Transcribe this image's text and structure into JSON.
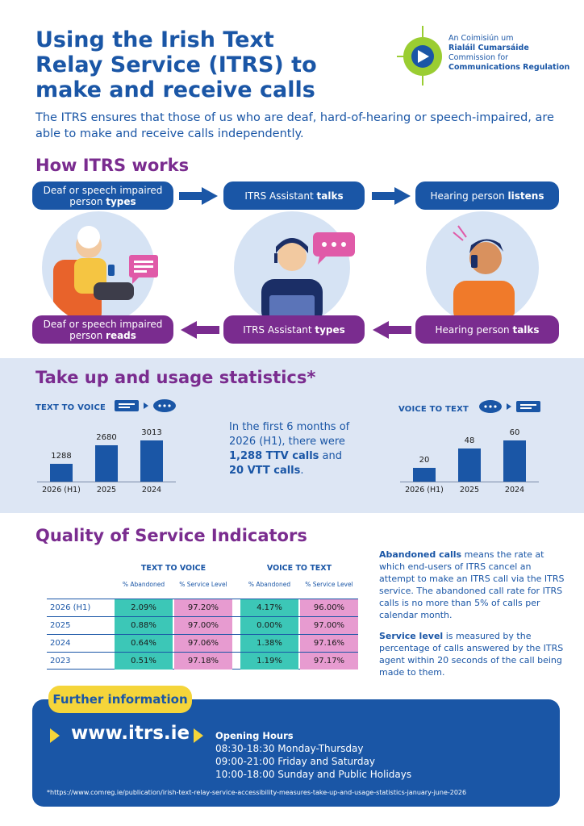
{
  "header": {
    "title_line1": "Using the Irish Text",
    "title_line2": "Relay Service (ITRS) to",
    "title_line3": "make and receive calls",
    "logo_line1": "An Coimisiún um",
    "logo_line2": "Rialáil Cumarsáide",
    "logo_line3": "Commission for",
    "logo_line4": "Communications Regulation",
    "intro": "The ITRS ensures that those of us who are deaf, hard-of-hearing or speech-impaired, are able to make and receive calls independently."
  },
  "how": {
    "heading": "How ITRS works",
    "top": [
      {
        "pre": "Deaf or speech impaired person ",
        "bold": "types"
      },
      {
        "pre": "ITRS Assistant ",
        "bold": "talks"
      },
      {
        "pre": "Hearing person ",
        "bold": "listens"
      }
    ],
    "bottom": [
      {
        "pre": "Deaf or speech impaired person ",
        "bold": "reads"
      },
      {
        "pre": "ITRS Assistant ",
        "bold": "types"
      },
      {
        "pre": "Hearing person ",
        "bold": "talks"
      }
    ],
    "icons": [
      "elderly-woman-phone-icon",
      "assistant-headset-laptop-icon",
      "hearing-person-phone-icon",
      "chat-bubble-icon",
      "speech-bubble-dots-icon"
    ]
  },
  "stats": {
    "heading": "Take up and usage statistics*",
    "middle_pre": "In the first 6 months of 2026 (H1), there were ",
    "middle_b1": "1,288 TTV calls",
    "middle_mid": " and ",
    "middle_b2": "20 VTT calls",
    "middle_post": "."
  },
  "chart_data": [
    {
      "type": "bar",
      "title": "TEXT TO VOICE",
      "categories": [
        "2026 (H1)",
        "2025",
        "2024"
      ],
      "values": [
        1288,
        2680,
        3013
      ],
      "value_labels": [
        "1288",
        "2680",
        "3013"
      ],
      "ylim": [
        0,
        3013
      ]
    },
    {
      "type": "bar",
      "title": "VOICE TO TEXT",
      "categories": [
        "2026 (H1)",
        "2025",
        "2024"
      ],
      "values": [
        20,
        48,
        60
      ],
      "value_labels": [
        "20",
        "48",
        "60"
      ],
      "ylim": [
        0,
        60
      ]
    }
  ],
  "quality": {
    "heading": "Quality of Service Indicators",
    "group1": "TEXT TO VOICE",
    "group2": "VOICE TO TEXT",
    "sub_abandoned": "% Abandoned",
    "sub_service": "% Service Level",
    "rows": [
      {
        "year": "2026 (H1)",
        "ttv_ab": "2.09%",
        "ttv_sl": "97.20%",
        "vtt_ab": "4.17%",
        "vtt_sl": "96.00%"
      },
      {
        "year": "2025",
        "ttv_ab": "0.88%",
        "ttv_sl": "97.00%",
        "vtt_ab": "0.00%",
        "vtt_sl": "97.00%"
      },
      {
        "year": "2024",
        "ttv_ab": "0.64%",
        "ttv_sl": "97.06%",
        "vtt_ab": "1.38%",
        "vtt_sl": "97.16%"
      },
      {
        "year": "2023",
        "ttv_ab": "0.51%",
        "ttv_sl": "97.18%",
        "vtt_ab": "1.19%",
        "vtt_sl": "97.17%"
      }
    ],
    "abandoned_bold": "Abandoned calls",
    "abandoned_text": " means the rate at which end-users of ITRS cancel an attempt to make an ITRS call via the ITRS service. The abandoned call rate for ITRS calls is no more than 5% of calls per calendar month.",
    "service_bold": "Service level",
    "service_text": " is measured by the percentage of calls answered by the ITRS agent within 20 seconds of the call being made to them."
  },
  "footer": {
    "further": "Further information",
    "url": "www.itrs.ie",
    "hours_title": "Opening Hours",
    "hours": [
      "08:30-18:30 Monday-Thursday",
      "09:00-21:00 Friday and Saturday",
      "10:00-18:00 Sunday and Public Holidays"
    ],
    "footnote": "*https://www.comreg.ie/publication/irish-text-relay-service-accessibility-measures-take-up-and-usage-statistics-january-june-2026"
  },
  "colors": {
    "blue": "#1a56a6",
    "purple": "#7a2c8f",
    "teal": "#3cc7b7",
    "pink": "#e79bd0",
    "yellow": "#f5d53a",
    "band": "#dde6f4"
  }
}
